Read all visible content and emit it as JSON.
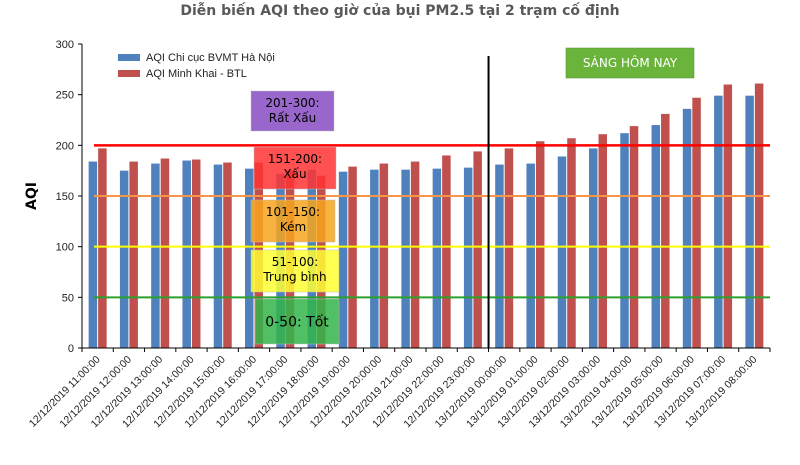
{
  "chart_data": {
    "type": "bar",
    "title": "Diễn biến AQI theo giờ của bụi PM2.5 tại 2 trạm cố định",
    "ylabel": "AQI",
    "xlabel": "",
    "ylim": [
      0,
      300
    ],
    "yticks": [
      0,
      50,
      100,
      150,
      200,
      250,
      300
    ],
    "legend_position": "top-left",
    "categories": [
      "12/12/2019 11:00:00",
      "12/12/2019 12:00:00",
      "12/12/2019 13:00:00",
      "12/12/2019 14:00:00",
      "12/12/2019 15:00:00",
      "12/12/2019 16:00:00",
      "12/12/2019 17:00:00",
      "12/12/2019 18:00:00",
      "12/12/2019 19:00:00",
      "12/12/2019 20:00:00",
      "12/12/2019 21:00:00",
      "12/12/2019 22:00:00",
      "12/12/2019 23:00:00",
      "13/12/2019 00:00:00",
      "13/12/2019 01:00:00",
      "13/12/2019 02:00:00",
      "13/12/2019 03:00:00",
      "13/12/2019 04:00:00",
      "13/12/2019 05:00:00",
      "13/12/2019 06:00:00",
      "13/12/2019 07:00:00",
      "13/12/2019 08:00:00"
    ],
    "series": [
      {
        "name": "AQI Chi cục BVMT Hà Nội",
        "color": "#4F81BD",
        "values": [
          184,
          175,
          182,
          185,
          181,
          177,
          172,
          176,
          174,
          176,
          176,
          177,
          178,
          181,
          182,
          189,
          197,
          212,
          220,
          236,
          249,
          249
        ]
      },
      {
        "name": "AQI Minh Khai - BTL",
        "color": "#C0504D",
        "values": [
          197,
          184,
          187,
          186,
          183,
          183,
          175,
          170,
          179,
          182,
          184,
          190,
          194,
          197,
          204,
          207,
          211,
          219,
          231,
          247,
          260,
          261
        ]
      }
    ],
    "threshold_lines": [
      {
        "value": 200,
        "color": "#FF0000"
      },
      {
        "value": 150,
        "color": "#F79646"
      },
      {
        "value": 100,
        "color": "#FFFF00"
      },
      {
        "value": 50,
        "color": "#2CA02C"
      }
    ],
    "divider_after_category": "12/12/2019 23:00:00",
    "aqi_bands": [
      {
        "line1": "201-300:",
        "line2": "Rất Xấu",
        "color": "#9966CC"
      },
      {
        "line1": "151-200:",
        "line2": "Xấu",
        "color": "#FF3333"
      },
      {
        "line1": "101-150:",
        "line2": "Kém",
        "color": "#F7A41D"
      },
      {
        "line1": "51-100:",
        "line2": "Trung bình",
        "color": "#FFFF33"
      },
      {
        "line1": "0-50:",
        "line2": "Tốt",
        "color": "#33B54A"
      }
    ],
    "annotation": {
      "text": "SÁNG HÔM NAY",
      "color": "#6AB43C"
    }
  }
}
